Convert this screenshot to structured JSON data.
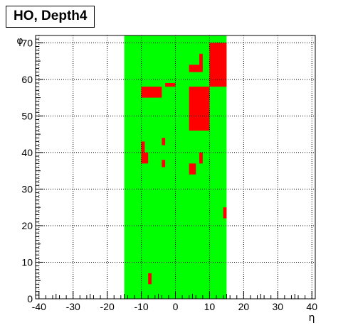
{
  "chart_data": {
    "type": "heatmap",
    "title": "HO, Depth4",
    "xlabel": "η",
    "ylabel": "φ",
    "xlim": [
      -41,
      41
    ],
    "ylim": [
      0,
      72
    ],
    "xticks": [
      -40,
      -30,
      -20,
      -10,
      0,
      10,
      20,
      30,
      40
    ],
    "yticks": [
      0,
      10,
      20,
      30,
      40,
      50,
      60,
      70
    ],
    "grid": true,
    "colors": {
      "active": "#00ff00",
      "flagged": "#ff0000"
    },
    "active_region": {
      "eta": [
        -15,
        15
      ],
      "phi": [
        0,
        72
      ]
    },
    "flagged_cells": [
      {
        "eta": [
          10,
          15
        ],
        "phi": [
          58,
          70
        ]
      },
      {
        "eta": [
          7,
          8
        ],
        "phi": [
          63,
          67
        ]
      },
      {
        "eta": [
          4,
          8
        ],
        "phi": [
          62,
          64
        ]
      },
      {
        "eta": [
          -3,
          0
        ],
        "phi": [
          58,
          59
        ]
      },
      {
        "eta": [
          -10,
          -4
        ],
        "phi": [
          55,
          58
        ]
      },
      {
        "eta": [
          4,
          10
        ],
        "phi": [
          46,
          58
        ]
      },
      {
        "eta": [
          -4,
          -3
        ],
        "phi": [
          42,
          44
        ]
      },
      {
        "eta": [
          -10,
          -9
        ],
        "phi": [
          40,
          43
        ]
      },
      {
        "eta": [
          -10,
          -8
        ],
        "phi": [
          37,
          40
        ]
      },
      {
        "eta": [
          7,
          8
        ],
        "phi": [
          37,
          40
        ]
      },
      {
        "eta": [
          -4,
          -3
        ],
        "phi": [
          36,
          38
        ]
      },
      {
        "eta": [
          4,
          6
        ],
        "phi": [
          34,
          37
        ]
      },
      {
        "eta": [
          14,
          15
        ],
        "phi": [
          22,
          25
        ]
      },
      {
        "eta": [
          -8,
          -7
        ],
        "phi": [
          4,
          7
        ]
      }
    ]
  }
}
